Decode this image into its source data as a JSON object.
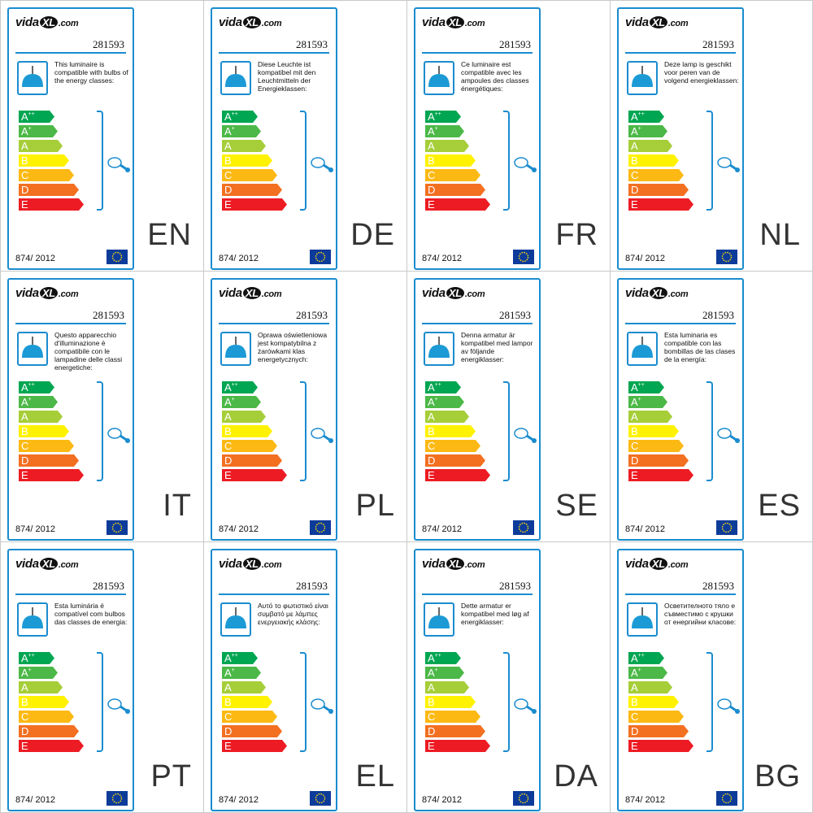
{
  "brand": {
    "pre": "vida",
    "mid": "XL",
    "post": ".com"
  },
  "code": "281593",
  "regulation": "874/ 2012",
  "energy_classes": [
    {
      "label": "A",
      "sup": "++",
      "color": "#00a651"
    },
    {
      "label": "A",
      "sup": "+",
      "color": "#4cb847"
    },
    {
      "label": "A",
      "sup": "",
      "color": "#a6ce39"
    },
    {
      "label": "B",
      "sup": "",
      "color": "#fff200"
    },
    {
      "label": "C",
      "sup": "",
      "color": "#fdb913"
    },
    {
      "label": "D",
      "sup": "",
      "color": "#f37021"
    },
    {
      "label": "E",
      "sup": "",
      "color": "#ed1c24"
    }
  ],
  "accent_color": "#1a8ccf",
  "labels": [
    {
      "lang": "EN",
      "text": "This luminaire is compatible with bulbs of the energy classes:"
    },
    {
      "lang": "DE",
      "text": "Diese Leuchte ist kompatibel mit den Leuchtmitteln der Energieklassen:"
    },
    {
      "lang": "FR",
      "text": "Ce luminaire est compatible avec les ampoules des classes énergétiques:"
    },
    {
      "lang": "NL",
      "text": "Deze lamp is geschikt voor peren van de volgend energieklassen:"
    },
    {
      "lang": "IT",
      "text": "Questo apparecchio d'illuminazione è compatibile con le lampadine delle classi energetiche:"
    },
    {
      "lang": "PL",
      "text": "Oprawa oświetleniowa jest kompatybilna z żarówkami klas energetycznych:"
    },
    {
      "lang": "SE",
      "text": "Denna armatur är kompatibel med lampor av följande energiklasser:"
    },
    {
      "lang": "ES",
      "text": "Esta luminaria es compatible con las bombillas de las clases de la energía:"
    },
    {
      "lang": "PT",
      "text": "Esta luminária é compatível com bulbos das classes de energia:"
    },
    {
      "lang": "EL",
      "text": "Αυτό το φωτιστικό είναι συμβατό με λάμπες ενεργειακής κλάσης:"
    },
    {
      "lang": "DA",
      "text": "Dette armatur er kompatibel med løg af energiklasser:"
    },
    {
      "lang": "BG",
      "text": "Осветителното тяло е съвместимо с крушки от енергийни класове:"
    }
  ]
}
